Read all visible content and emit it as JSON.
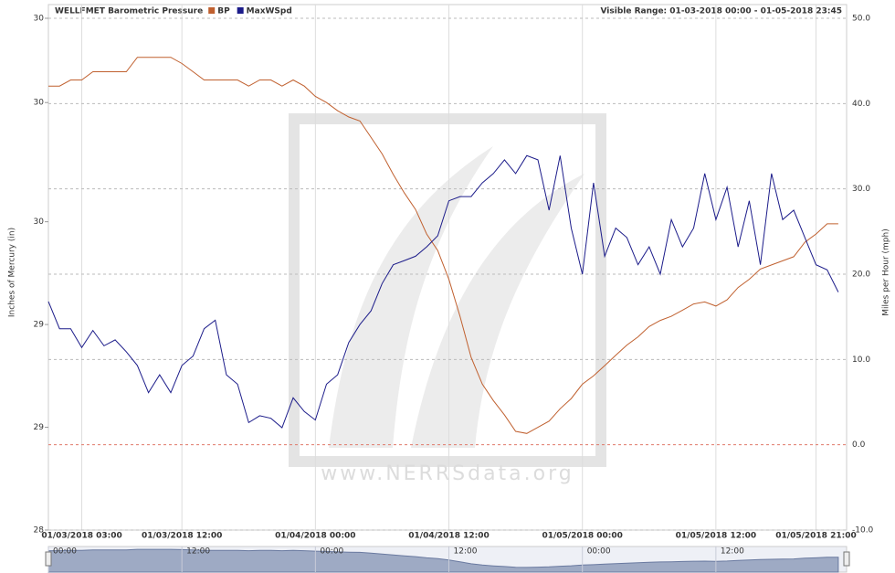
{
  "chart_data": {
    "type": "line",
    "title": "WELLFMET Barometric Pressure",
    "visible_range": "Visible Range: 01-03-2018 00:00 - 01-05-2018 23:45",
    "y_label": "Inches of Mercury (in)",
    "y2_label": "Miles per Hour (mph)",
    "watermark": "www.NERRSdata.org",
    "xlim": [
      "01/03/2018 00:00",
      "01/05/2018 23:45"
    ],
    "xticks": [
      "01/03/2018 03:00",
      "01/03/2018 12:00",
      "01/04/2018 00:00",
      "01/04/2018 12:00",
      "01/05/2018 00:00",
      "01/05/2018 12:00",
      "01/05/2018 21:00"
    ],
    "ylim": [
      28,
      30.49
    ],
    "yticks": [
      28,
      {
        "value": 28.5,
        "label": "29"
      },
      29,
      {
        "value": 29.5,
        "label": "30"
      },
      {
        "value": 30.08,
        "label": "30"
      },
      {
        "value": 30.49,
        "label": "30"
      }
    ],
    "y2lim": [
      -10,
      50
    ],
    "y2ticks": [
      {
        "value": -10,
        "label": "-10.0"
      },
      {
        "value": 0,
        "label": "0.0"
      },
      {
        "value": 10,
        "label": "10.0"
      },
      {
        "value": 20,
        "label": "20.0"
      },
      {
        "value": 30,
        "label": "30.0"
      },
      {
        "value": 40,
        "label": "40.0"
      },
      {
        "value": 50,
        "label": "50.0"
      }
    ],
    "zero_line_color": "#e07a6a",
    "grid": true,
    "x": [
      "01/03/2018 00:00",
      "01/03/2018 01:00",
      "01/03/2018 02:00",
      "01/03/2018 03:00",
      "01/03/2018 04:00",
      "01/03/2018 05:00",
      "01/03/2018 06:00",
      "01/03/2018 07:00",
      "01/03/2018 08:00",
      "01/03/2018 09:00",
      "01/03/2018 10:00",
      "01/03/2018 11:00",
      "01/03/2018 12:00",
      "01/03/2018 13:00",
      "01/03/2018 14:00",
      "01/03/2018 15:00",
      "01/03/2018 16:00",
      "01/03/2018 17:00",
      "01/03/2018 18:00",
      "01/03/2018 19:00",
      "01/03/2018 20:00",
      "01/03/2018 21:00",
      "01/03/2018 22:00",
      "01/03/2018 23:00",
      "01/04/2018 00:00",
      "01/04/2018 01:00",
      "01/04/2018 02:00",
      "01/04/2018 03:00",
      "01/04/2018 04:00",
      "01/04/2018 05:00",
      "01/04/2018 06:00",
      "01/04/2018 07:00",
      "01/04/2018 08:00",
      "01/04/2018 09:00",
      "01/04/2018 10:00",
      "01/04/2018 11:00",
      "01/04/2018 12:00",
      "01/04/2018 13:00",
      "01/04/2018 14:00",
      "01/04/2018 15:00",
      "01/04/2018 16:00",
      "01/04/2018 17:00",
      "01/04/2018 18:00",
      "01/04/2018 19:00",
      "01/04/2018 20:00",
      "01/04/2018 21:00",
      "01/04/2018 22:00",
      "01/04/2018 23:00",
      "01/05/2018 00:00",
      "01/05/2018 01:00",
      "01/05/2018 02:00",
      "01/05/2018 03:00",
      "01/05/2018 04:00",
      "01/05/2018 05:00",
      "01/05/2018 06:00",
      "01/05/2018 07:00",
      "01/05/2018 08:00",
      "01/05/2018 09:00",
      "01/05/2018 10:00",
      "01/05/2018 11:00",
      "01/05/2018 12:00",
      "01/05/2018 13:00",
      "01/05/2018 14:00",
      "01/05/2018 15:00",
      "01/05/2018 16:00",
      "01/05/2018 17:00",
      "01/05/2018 18:00",
      "01/05/2018 19:00",
      "01/05/2018 20:00",
      "01/05/2018 21:00",
      "01/05/2018 22:00",
      "01/05/2018 23:00"
    ],
    "series": [
      {
        "name": "BP",
        "color": "#c0602f",
        "axis": "y",
        "values": [
          30.16,
          30.16,
          30.19,
          30.19,
          30.23,
          30.23,
          30.23,
          30.23,
          30.3,
          30.3,
          30.3,
          30.3,
          30.27,
          30.23,
          30.19,
          30.19,
          30.19,
          30.19,
          30.16,
          30.19,
          30.19,
          30.16,
          30.19,
          30.16,
          30.11,
          30.08,
          30.04,
          30.01,
          29.99,
          29.91,
          29.83,
          29.73,
          29.64,
          29.56,
          29.44,
          29.36,
          29.22,
          29.04,
          28.84,
          28.71,
          28.63,
          28.56,
          28.48,
          28.47,
          28.5,
          28.53,
          28.59,
          28.64,
          28.71,
          28.75,
          28.8,
          28.85,
          28.9,
          28.94,
          28.99,
          29.02,
          29.04,
          29.07,
          29.1,
          29.11,
          29.09,
          29.12,
          29.18,
          29.22,
          29.27,
          29.29,
          29.31,
          29.33,
          29.4,
          29.44,
          29.49,
          29.49
        ]
      },
      {
        "name": "MaxWSpd",
        "color": "#1c1c8a",
        "axis": "y2",
        "values": [
          16.8,
          13.6,
          13.6,
          11.4,
          13.4,
          11.6,
          12.3,
          10.9,
          9.3,
          6.1,
          8.2,
          6.1,
          9.3,
          10.4,
          13.6,
          14.6,
          8.2,
          7.1,
          2.6,
          3.4,
          3.1,
          2.0,
          5.5,
          3.9,
          2.9,
          7.1,
          8.2,
          12.0,
          14.1,
          15.7,
          18.9,
          21.1,
          21.6,
          22.1,
          23.2,
          24.5,
          28.6,
          29.1,
          29.1,
          30.7,
          31.8,
          33.4,
          31.8,
          33.9,
          33.4,
          27.5,
          33.9,
          25.4,
          20.0,
          30.7,
          22.1,
          25.4,
          24.3,
          21.1,
          23.2,
          20.0,
          26.4,
          23.2,
          25.4,
          31.8,
          26.4,
          30.2,
          23.2,
          28.6,
          21.1,
          31.8,
          26.4,
          27.5,
          24.3,
          21.1,
          20.5,
          17.9
        ]
      }
    ],
    "navigator_labels": [
      "00:00",
      "12:00",
      "00:00",
      "12:00",
      "00:00",
      "12:00"
    ]
  }
}
